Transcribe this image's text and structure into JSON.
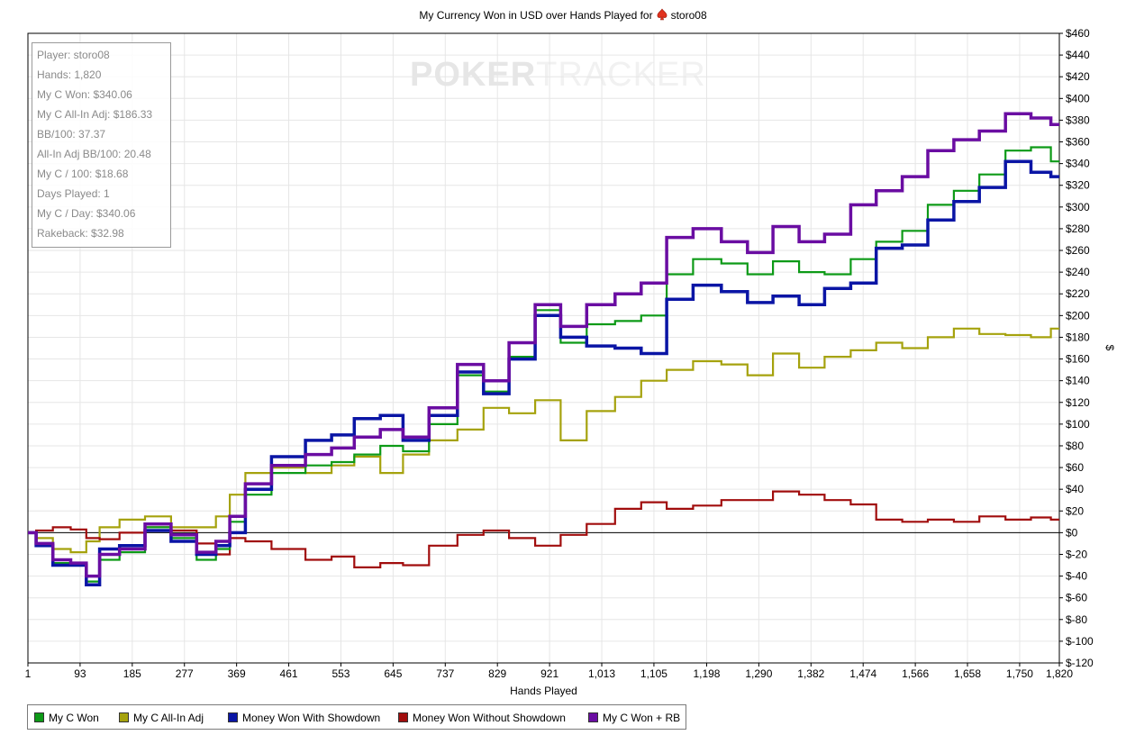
{
  "title": {
    "text": "My Currency Won in USD over Hands Played for",
    "player": "storo08"
  },
  "watermark": {
    "part1": "POKER",
    "part2": "TRACKER"
  },
  "stats": [
    "Player: storo08",
    "Hands: 1,820",
    "My C Won: $340.06",
    "My C All-In Adj: $186.33",
    "BB/100: 37.37",
    "All-In Adj BB/100: 20.48",
    "My C / 100: $18.68",
    "Days Played: 1",
    "My C / Day: $340.06",
    "Rakeback: $32.98"
  ],
  "colors": {
    "my_c_won": "#0d9a17",
    "all_in_adj": "#a5a20d",
    "showdown": "#0a15a5",
    "non_showdown": "#a10d0d",
    "won_rb": "#6a0da2",
    "grid": "#e6e6e6",
    "zero_line": "#000000"
  },
  "chart_data": {
    "type": "line",
    "title": "My Currency Won in USD over Hands Played for storo08",
    "xlabel": "Hands Played",
    "ylabel": "$",
    "xlim": [
      1,
      1820
    ],
    "ylim": [
      -120,
      460
    ],
    "x_ticks": [
      1,
      93,
      185,
      277,
      369,
      461,
      553,
      645,
      737,
      829,
      921,
      1013,
      1105,
      1198,
      1290,
      1382,
      1474,
      1566,
      1658,
      1750,
      1820
    ],
    "x_tick_labels": [
      "1",
      "93",
      "185",
      "277",
      "369",
      "461",
      "553",
      "645",
      "737",
      "829",
      "921",
      "1,013",
      "1,105",
      "1,198",
      "1,290",
      "1,382",
      "1,474",
      "1,566",
      "1,658",
      "1,750",
      "1,820"
    ],
    "y_ticks": [
      -120,
      -100,
      -80,
      -60,
      -40,
      -20,
      0,
      20,
      40,
      60,
      80,
      100,
      120,
      140,
      160,
      180,
      200,
      220,
      240,
      260,
      280,
      300,
      320,
      340,
      360,
      380,
      400,
      420,
      440,
      460
    ],
    "y_tick_labels": [
      "$-120",
      "$-100",
      "$-80",
      "$-60",
      "$-40",
      "$-20",
      "$0",
      "$20",
      "$40",
      "$60",
      "$80",
      "$100",
      "$120",
      "$140",
      "$160",
      "$180",
      "$200",
      "$220",
      "$240",
      "$260",
      "$280",
      "$300",
      "$320",
      "$340",
      "$360",
      "$380",
      "$400",
      "$420",
      "$440",
      "$460"
    ],
    "grid": true,
    "legend_position": "bottom-left",
    "x": [
      1,
      30,
      60,
      93,
      115,
      140,
      185,
      230,
      277,
      320,
      345,
      369,
      400,
      461,
      520,
      553,
      600,
      645,
      680,
      737,
      780,
      829,
      870,
      921,
      960,
      1013,
      1060,
      1105,
      1150,
      1198,
      1250,
      1290,
      1340,
      1382,
      1430,
      1474,
      1520,
      1566,
      1610,
      1658,
      1700,
      1750,
      1790,
      1820
    ],
    "series": [
      {
        "name": "My C Won",
        "color": "#0d9a17",
        "width": 2.2,
        "values": [
          0,
          -10,
          -28,
          -30,
          -45,
          -25,
          -18,
          5,
          -5,
          -25,
          -15,
          10,
          35,
          55,
          62,
          65,
          72,
          80,
          75,
          100,
          145,
          130,
          162,
          205,
          175,
          192,
          195,
          200,
          238,
          252,
          248,
          238,
          250,
          240,
          238,
          252,
          268,
          278,
          302,
          315,
          330,
          352,
          355,
          342
        ]
      },
      {
        "name": "My C All-In Adj",
        "color": "#a5a20d",
        "width": 2.2,
        "values": [
          0,
          -5,
          -15,
          -18,
          -8,
          5,
          12,
          15,
          5,
          5,
          15,
          35,
          55,
          60,
          55,
          62,
          70,
          55,
          72,
          85,
          95,
          115,
          110,
          122,
          85,
          112,
          125,
          140,
          150,
          158,
          155,
          145,
          165,
          152,
          162,
          168,
          175,
          170,
          180,
          188,
          183,
          182,
          180,
          188
        ]
      },
      {
        "name": "Money Won With Showdown",
        "color": "#0a15a5",
        "width": 3.5,
        "values": [
          0,
          -12,
          -30,
          -30,
          -48,
          -15,
          -12,
          2,
          -8,
          -20,
          -12,
          0,
          40,
          70,
          85,
          90,
          105,
          108,
          85,
          108,
          148,
          128,
          160,
          200,
          180,
          172,
          170,
          165,
          215,
          228,
          222,
          212,
          218,
          210,
          225,
          230,
          262,
          265,
          288,
          305,
          318,
          342,
          332,
          328
        ]
      },
      {
        "name": "Money Won Without Showdown",
        "color": "#a10d0d",
        "width": 2.2,
        "values": [
          0,
          2,
          5,
          3,
          -5,
          -6,
          0,
          5,
          2,
          -10,
          -20,
          -5,
          -8,
          -15,
          -25,
          -22,
          -32,
          -28,
          -30,
          -12,
          -2,
          2,
          -5,
          -12,
          -2,
          8,
          22,
          28,
          22,
          25,
          30,
          30,
          38,
          35,
          30,
          26,
          12,
          10,
          12,
          10,
          15,
          12,
          14,
          12
        ]
      },
      {
        "name": "My C Won + RB",
        "color": "#6a0da2",
        "width": 3.5,
        "values": [
          0,
          -10,
          -25,
          -28,
          -40,
          -20,
          -15,
          8,
          -2,
          -18,
          -8,
          15,
          45,
          62,
          72,
          78,
          88,
          95,
          88,
          115,
          155,
          140,
          175,
          210,
          190,
          210,
          220,
          230,
          272,
          280,
          268,
          258,
          282,
          268,
          275,
          302,
          315,
          328,
          352,
          362,
          370,
          386,
          382,
          376
        ]
      }
    ]
  },
  "legend": [
    {
      "label": "My C Won",
      "color": "#0d9a17"
    },
    {
      "label": "My C All-In Adj",
      "color": "#a5a20d"
    },
    {
      "label": "Money Won With Showdown",
      "color": "#0a15a5"
    },
    {
      "label": "Money Won Without Showdown",
      "color": "#a10d0d"
    },
    {
      "label": "My C Won + RB",
      "color": "#6a0da2"
    }
  ]
}
